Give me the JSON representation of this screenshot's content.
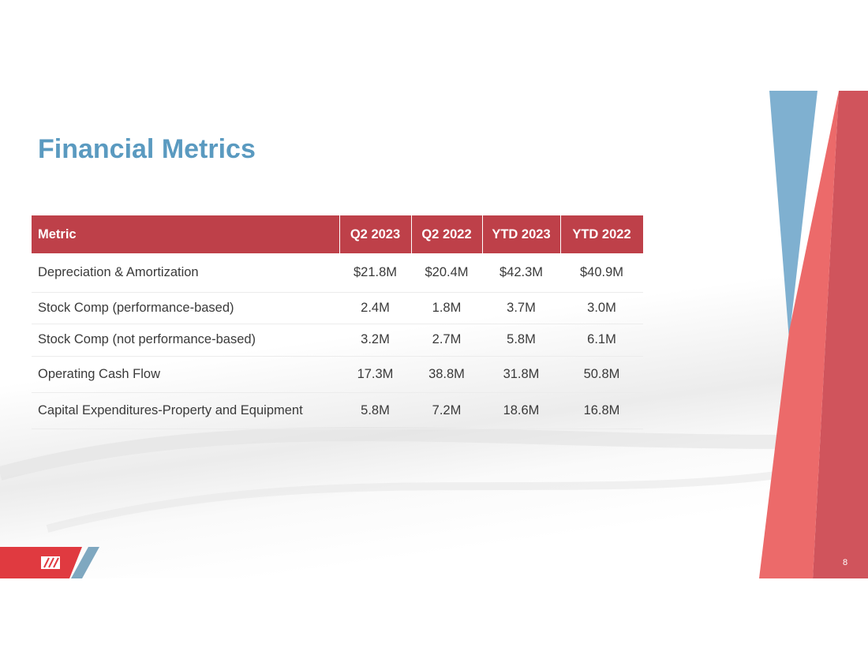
{
  "header": {
    "title": "Financial Metrics"
  },
  "table": {
    "columns": [
      "Metric",
      "Q2 2023",
      "Q2 2022",
      "YTD 2023",
      "YTD 2022"
    ],
    "rows": [
      [
        "Depreciation & Amortization",
        "$21.8M",
        "$20.4M",
        "$42.3M",
        "$40.9M"
      ],
      [
        "Stock Comp (performance-based)",
        "2.4M",
        "1.8M",
        "3.7M",
        "3.0M"
      ],
      [
        "Stock Comp (not performance-based)",
        "3.2M",
        "2.7M",
        "5.8M",
        "6.1M"
      ],
      [
        "Operating Cash Flow",
        "17.3M",
        "38.8M",
        "31.8M",
        "50.8M"
      ],
      [
        "Capital Expenditures-Property and Equipment",
        "5.8M",
        "7.2M",
        "18.6M",
        "16.8M"
      ]
    ]
  },
  "footer": {
    "page_number": "8"
  }
}
